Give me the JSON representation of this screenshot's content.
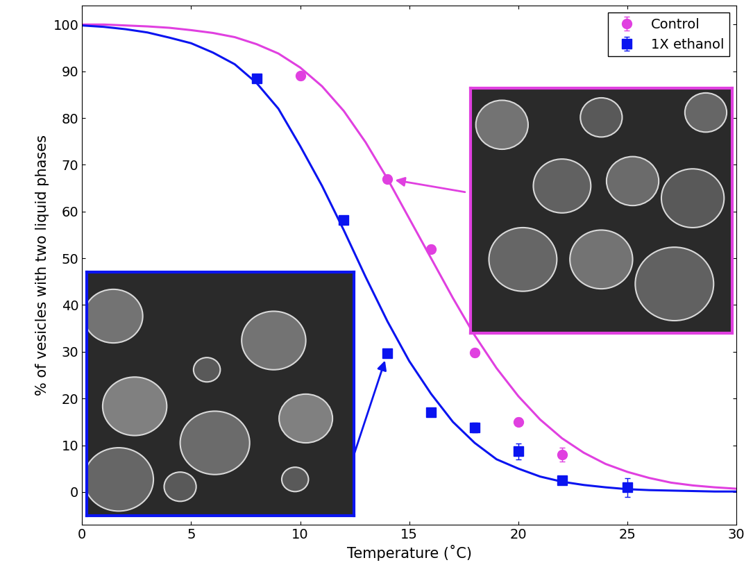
{
  "chart_data": {
    "type": "scatter",
    "x_label": "Temperature (˚C)",
    "y_label": "% of vesicles with two liquid phases",
    "xlim": [
      0,
      30
    ],
    "xticks": [
      0,
      5,
      10,
      15,
      20,
      25,
      30
    ],
    "ylim": [
      -7,
      104
    ],
    "yticks": [
      0,
      10,
      20,
      30,
      40,
      50,
      60,
      70,
      80,
      90,
      100
    ],
    "legend": "upper right",
    "grid": false,
    "series": [
      {
        "name": "Control",
        "color": "#e040e0",
        "marker": "circle",
        "x": [
          10,
          14,
          16,
          18,
          20,
          22
        ],
        "values": [
          89,
          67,
          52,
          29.8,
          15,
          8
        ],
        "errors": [
          0.8,
          0.8,
          0.8,
          0.8,
          0.8,
          1.5
        ],
        "fit": {
          "x": [
            0,
            1,
            2,
            3,
            4,
            5,
            6,
            7,
            8,
            9,
            10,
            11,
            12,
            13,
            14,
            15,
            16,
            17,
            18,
            19,
            20,
            21,
            22,
            23,
            24,
            25,
            26,
            27,
            28,
            29,
            30
          ],
          "values": [
            100,
            100,
            99.8,
            99.6,
            99.3,
            98.8,
            98.2,
            97.3,
            95.8,
            93.8,
            90.8,
            86.8,
            81.5,
            74.8,
            67,
            58.5,
            50,
            41.5,
            33.5,
            26.5,
            20.5,
            15.5,
            11.5,
            8.4,
            6,
            4.3,
            3,
            2,
            1.4,
            1,
            0.7
          ]
        }
      },
      {
        "name": "1X ethanol",
        "color": "#0a14f0",
        "marker": "square",
        "x": [
          8,
          12,
          14,
          16,
          18,
          20,
          22,
          25
        ],
        "values": [
          88.5,
          58.2,
          29.7,
          17,
          13.8,
          8.7,
          2.5,
          1
        ],
        "errors": [
          0.8,
          0.8,
          0.8,
          0.8,
          1,
          1.7,
          0.8,
          2
        ],
        "fit": {
          "x": [
            0,
            1,
            2,
            3,
            4,
            5,
            6,
            7,
            8,
            9,
            10,
            11,
            12,
            13,
            14,
            15,
            16,
            17,
            18,
            19,
            20,
            21,
            22,
            23,
            24,
            25,
            26,
            27,
            28,
            29,
            30
          ],
          "values": [
            99.8,
            99.5,
            99,
            98.3,
            97.2,
            96,
            94,
            91.5,
            87.5,
            82,
            74,
            65.5,
            56,
            46,
            36.5,
            28,
            21,
            15,
            10.5,
            7,
            5,
            3.3,
            2.2,
            1.5,
            1,
            0.6,
            0.4,
            0.3,
            0.2,
            0.1,
            0.1
          ]
        }
      }
    ]
  }
}
